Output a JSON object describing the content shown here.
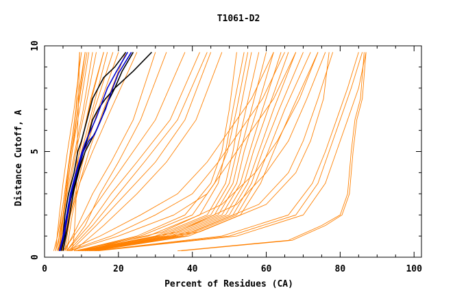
{
  "chart_data": {
    "type": "line",
    "title": "T1061-D2",
    "xlabel": "Percent of Residues (CA)",
    "ylabel": "Distance Cutoff, A",
    "xlim": [
      0,
      102
    ],
    "ylim": [
      0,
      10
    ],
    "xticks": [
      0,
      20,
      40,
      60,
      80,
      100
    ],
    "yticks": [
      0,
      5,
      10
    ],
    "grid": false,
    "colors": {
      "models": "#ff8000",
      "highlight_dark": "#000000",
      "highlight_blue": "#0000cc",
      "frame": "#000000"
    },
    "series": [
      {
        "group": "a",
        "color": "#ff8000",
        "x": [
          4.0,
          5.0,
          6.2,
          7.5,
          9.0,
          11.0
        ],
        "y": [
          0.3,
          2.0,
          3.5,
          5.0,
          7.0,
          9.7
        ]
      },
      {
        "group": "a",
        "color": "#ff8000",
        "x": [
          3.5,
          4.6,
          5.8,
          7.2,
          9.0,
          11.5
        ],
        "y": [
          0.3,
          2.0,
          3.5,
          5.0,
          7.0,
          9.7
        ]
      },
      {
        "group": "a",
        "color": "#ff8000",
        "x": [
          4.2,
          5.5,
          7.0,
          8.5,
          11.0,
          14.0
        ],
        "y": [
          0.3,
          2.0,
          3.5,
          5.0,
          7.0,
          9.7
        ]
      },
      {
        "group": "a",
        "color": "#ff8000",
        "x": [
          4.5,
          6.0,
          8.0,
          10.0,
          13.0,
          17.0
        ],
        "y": [
          0.3,
          2.0,
          3.5,
          5.0,
          7.0,
          9.7
        ]
      },
      {
        "group": "a",
        "color": "#ff8000",
        "x": [
          3.0,
          4.0,
          5.0,
          6.2,
          8.0,
          10.0
        ],
        "y": [
          0.3,
          2.0,
          3.5,
          5.0,
          7.0,
          9.7
        ]
      },
      {
        "group": "a",
        "color": "#ff8000",
        "x": [
          5.0,
          6.5,
          8.5,
          10.5,
          13.5,
          18.5
        ],
        "y": [
          0.3,
          2.0,
          3.5,
          5.0,
          7.0,
          9.7
        ]
      },
      {
        "group": "a",
        "color": "#ff8000",
        "x": [
          4.8,
          6.2,
          7.8,
          9.5,
          12.0,
          16.0
        ],
        "y": [
          0.3,
          2.0,
          3.5,
          5.0,
          7.0,
          9.7
        ]
      },
      {
        "group": "a",
        "color": "#ff8000",
        "x": [
          4.0,
          5.2,
          6.6,
          8.2,
          10.5,
          13.0
        ],
        "y": [
          0.3,
          2.0,
          3.5,
          5.0,
          7.0,
          9.7
        ]
      },
      {
        "group": "a",
        "color": "#ff8000",
        "x": [
          5.5,
          7.0,
          9.0,
          11.0,
          14.5,
          20.0
        ],
        "y": [
          0.3,
          2.0,
          3.5,
          5.0,
          7.0,
          9.7
        ]
      },
      {
        "group": "a",
        "color": "#ff8000",
        "x": [
          3.8,
          5.0,
          6.0,
          7.0,
          8.5,
          9.5
        ],
        "y": [
          0.3,
          2.0,
          3.5,
          5.0,
          7.0,
          9.7
        ]
      },
      {
        "group": "a",
        "color": "#ff8000",
        "x": [
          6.0,
          7.5,
          9.5,
          12.0,
          16.0,
          22.0
        ],
        "y": [
          0.3,
          2.0,
          3.5,
          5.0,
          7.0,
          9.7
        ]
      },
      {
        "group": "a",
        "color": "#ff8000",
        "x": [
          5.0,
          7.0,
          9.5,
          13.0,
          18.0,
          25.0
        ],
        "y": [
          0.3,
          2.0,
          3.5,
          5.0,
          7.0,
          9.7
        ]
      },
      {
        "group": "b",
        "color": "#ff8000",
        "x": [
          5.0,
          10.0,
          16.0,
          22.0,
          30.0,
          38.0
        ],
        "y": [
          0.3,
          1.5,
          3.0,
          4.5,
          6.5,
          9.7
        ]
      },
      {
        "group": "b",
        "color": "#ff8000",
        "x": [
          6.0,
          12.0,
          18.0,
          25.0,
          34.0,
          42.0
        ],
        "y": [
          0.3,
          1.5,
          3.0,
          4.5,
          6.5,
          9.7
        ]
      },
      {
        "group": "b",
        "color": "#ff8000",
        "x": [
          5.5,
          9.0,
          13.0,
          18.0,
          24.0,
          30.0
        ],
        "y": [
          0.3,
          1.5,
          3.0,
          4.5,
          6.5,
          9.7
        ]
      },
      {
        "group": "b",
        "color": "#ff8000",
        "x": [
          7.0,
          14.0,
          22.0,
          30.0,
          38.0,
          45.0
        ],
        "y": [
          0.3,
          1.5,
          3.0,
          4.5,
          6.5,
          9.7
        ]
      },
      {
        "group": "b",
        "color": "#ff8000",
        "x": [
          6.0,
          11.0,
          15.0,
          20.0,
          26.0,
          33.0
        ],
        "y": [
          0.3,
          1.5,
          3.0,
          4.5,
          6.5,
          9.7
        ]
      },
      {
        "group": "b",
        "color": "#ff8000",
        "x": [
          8.0,
          16.0,
          25.0,
          33.0,
          41.0,
          48.0
        ],
        "y": [
          0.3,
          1.5,
          3.0,
          4.5,
          6.5,
          9.7
        ]
      },
      {
        "group": "b",
        "color": "#ff8000",
        "x": [
          6.5,
          13.0,
          20.0,
          27.0,
          36.0,
          44.0
        ],
        "y": [
          0.3,
          1.5,
          3.0,
          4.5,
          6.5,
          9.7
        ]
      },
      {
        "group": "c",
        "color": "#ff8000",
        "x": [
          8.0,
          28.0,
          42.0,
          47.0,
          49.0,
          51.0,
          54.0
        ],
        "y": [
          0.3,
          1.0,
          2.0,
          3.5,
          5.0,
          7.0,
          9.7
        ]
      },
      {
        "group": "c",
        "color": "#ff8000",
        "x": [
          9.0,
          30.0,
          44.0,
          49.0,
          51.0,
          53.0,
          56.0
        ],
        "y": [
          0.3,
          1.0,
          2.0,
          3.5,
          5.0,
          7.0,
          9.7
        ]
      },
      {
        "group": "c",
        "color": "#ff8000",
        "x": [
          9.5,
          31.0,
          45.0,
          50.0,
          52.0,
          54.5,
          58.0
        ],
        "y": [
          0.3,
          1.0,
          2.0,
          3.5,
          5.0,
          7.0,
          9.7
        ]
      },
      {
        "group": "c",
        "color": "#ff8000",
        "x": [
          10.0,
          32.0,
          46.0,
          51.0,
          53.0,
          56.0,
          60.0
        ],
        "y": [
          0.3,
          1.0,
          2.0,
          3.5,
          5.0,
          7.0,
          9.7
        ]
      },
      {
        "group": "c",
        "color": "#ff8000",
        "x": [
          10.5,
          33.0,
          47.0,
          52.0,
          54.0,
          57.5,
          62.0
        ],
        "y": [
          0.3,
          1.0,
          2.0,
          3.5,
          5.0,
          7.0,
          9.7
        ]
      },
      {
        "group": "c",
        "color": "#ff8000",
        "x": [
          11.0,
          34.0,
          48.0,
          53.0,
          55.5,
          59.0,
          64.0
        ],
        "y": [
          0.3,
          1.0,
          2.0,
          3.5,
          5.0,
          7.0,
          9.7
        ]
      },
      {
        "group": "c",
        "color": "#ff8000",
        "x": [
          11.5,
          35.0,
          49.0,
          54.0,
          56.5,
          60.5,
          66.0
        ],
        "y": [
          0.3,
          1.0,
          2.0,
          3.5,
          5.0,
          7.0,
          9.7
        ]
      },
      {
        "group": "c",
        "color": "#ff8000",
        "x": [
          12.0,
          36.0,
          50.0,
          55.0,
          58.0,
          62.0,
          68.0
        ],
        "y": [
          0.3,
          1.0,
          2.0,
          3.5,
          5.0,
          7.0,
          9.7
        ]
      },
      {
        "group": "c",
        "color": "#ff8000",
        "x": [
          12.5,
          37.0,
          51.0,
          56.0,
          59.0,
          63.5,
          70.0
        ],
        "y": [
          0.3,
          1.0,
          2.0,
          3.5,
          5.0,
          7.0,
          9.7
        ]
      },
      {
        "group": "c",
        "color": "#ff8000",
        "x": [
          13.0,
          38.0,
          52.0,
          57.0,
          60.5,
          65.0,
          72.0
        ],
        "y": [
          0.3,
          1.0,
          2.0,
          3.5,
          5.0,
          7.0,
          9.7
        ]
      },
      {
        "group": "c",
        "color": "#ff8000",
        "x": [
          8.5,
          25.0,
          38.0,
          45.0,
          48.0,
          50.0,
          52.0
        ],
        "y": [
          0.3,
          1.0,
          2.0,
          3.5,
          5.0,
          7.0,
          9.7
        ]
      },
      {
        "group": "c",
        "color": "#ff8000",
        "x": [
          9.0,
          26.0,
          40.0,
          46.0,
          49.5,
          52.0,
          55.0
        ],
        "y": [
          0.3,
          1.0,
          2.0,
          3.5,
          5.0,
          7.0,
          9.7
        ]
      },
      {
        "group": "c",
        "color": "#ff8000",
        "x": [
          13.5,
          39.0,
          53.0,
          58.5,
          62.0,
          67.0,
          74.0
        ],
        "y": [
          0.3,
          1.0,
          2.0,
          3.5,
          5.0,
          7.0,
          9.7
        ]
      },
      {
        "group": "d",
        "color": "#ff8000",
        "x": [
          12.0,
          40.0,
          58.0,
          66.0,
          70.0,
          74.0,
          78.0
        ],
        "y": [
          0.3,
          1.2,
          2.5,
          4.0,
          5.5,
          7.5,
          9.7
        ]
      },
      {
        "group": "d",
        "color": "#ff8000",
        "x": [
          12.5,
          42.0,
          60.0,
          68.0,
          72.0,
          75.5,
          77.0
        ],
        "y": [
          0.3,
          1.2,
          2.5,
          4.0,
          5.5,
          7.5,
          9.7
        ]
      },
      {
        "group": "d",
        "color": "#ff8000",
        "x": [
          11.0,
          36.0,
          52.0,
          60.0,
          66.0,
          71.0,
          76.0
        ],
        "y": [
          0.3,
          1.2,
          2.5,
          4.0,
          5.5,
          7.5,
          9.7
        ]
      },
      {
        "group": "d",
        "color": "#ff8000",
        "x": [
          10.0,
          32.0,
          48.0,
          57.0,
          63.0,
          69.0,
          74.0
        ],
        "y": [
          0.3,
          1.2,
          2.5,
          4.0,
          5.5,
          7.5,
          9.7
        ]
      },
      {
        "group": "e",
        "color": "#ff8000",
        "x": [
          14.0,
          50.0,
          68.0,
          74.0,
          77.0,
          80.0,
          83.0,
          86.0
        ],
        "y": [
          0.3,
          1.0,
          2.0,
          3.5,
          5.0,
          6.5,
          8.0,
          9.7
        ]
      },
      {
        "group": "e",
        "color": "#ff8000",
        "x": [
          14.5,
          52.0,
          70.0,
          76.0,
          79.0,
          82.0,
          85.0,
          87.0
        ],
        "y": [
          0.3,
          1.0,
          2.0,
          3.5,
          5.0,
          6.5,
          8.0,
          9.7
        ]
      },
      {
        "group": "e",
        "color": "#ff8000",
        "x": [
          13.5,
          48.0,
          66.0,
          72.5,
          76.0,
          79.0,
          82.0,
          85.0
        ],
        "y": [
          0.3,
          1.0,
          2.0,
          3.5,
          5.0,
          6.5,
          8.0,
          9.7
        ]
      },
      {
        "group": "f",
        "color": "#ff8000",
        "x": [
          36.0,
          66.0,
          75.0,
          80.0,
          82.0,
          83.0,
          84.0,
          85.5,
          86.5
        ],
        "y": [
          0.3,
          0.8,
          1.5,
          2.0,
          3.0,
          5.0,
          6.5,
          7.5,
          9.7
        ]
      },
      {
        "group": "f",
        "color": "#ff8000",
        "x": [
          37.0,
          67.0,
          76.0,
          80.5,
          82.5,
          83.5,
          84.5,
          86.0,
          87.0
        ],
        "y": [
          0.3,
          0.8,
          1.5,
          2.0,
          3.0,
          5.0,
          6.5,
          7.5,
          9.7
        ]
      },
      {
        "group": "g",
        "color": "#ff8000",
        "x": [
          2.5,
          3.5,
          5.0,
          7.0,
          9.0,
          11.0
        ],
        "y": [
          0.3,
          1.0,
          2.5,
          5.0,
          7.5,
          9.7
        ]
      },
      {
        "group": "g",
        "color": "#ff8000",
        "x": [
          3.0,
          4.0,
          5.5,
          7.5,
          10.0,
          12.0
        ],
        "y": [
          0.3,
          1.0,
          2.5,
          5.0,
          7.5,
          9.7
        ]
      },
      {
        "group": "g",
        "color": "#ff8000",
        "x": [
          3.5,
          5.0,
          7.0,
          9.5,
          12.5,
          16.0
        ],
        "y": [
          0.3,
          1.0,
          2.5,
          5.0,
          7.5,
          9.7
        ]
      },
      {
        "group": "g",
        "color": "#ff8000",
        "x": [
          7.5,
          8.0,
          8.5,
          8.8,
          9.2,
          9.5
        ],
        "y": [
          0.3,
          1.0,
          2.5,
          5.0,
          7.5,
          9.7
        ]
      },
      {
        "group": "h",
        "color": "#ff8000",
        "x": [
          7.0,
          20.0,
          35.0,
          44.0,
          50.0,
          56.0,
          62.0,
          68.0
        ],
        "y": [
          0.3,
          1.0,
          2.0,
          3.0,
          4.5,
          6.0,
          7.5,
          9.7
        ]
      },
      {
        "group": "h",
        "color": "#ff8000",
        "x": [
          6.5,
          18.0,
          30.0,
          40.0,
          47.0,
          53.0,
          59.0,
          65.0
        ],
        "y": [
          0.3,
          1.0,
          2.0,
          3.0,
          4.5,
          6.0,
          7.5,
          9.7
        ]
      },
      {
        "group": "h",
        "color": "#ff8000",
        "x": [
          6.0,
          15.0,
          26.0,
          36.0,
          44.0,
          50.0,
          56.0,
          62.0
        ],
        "y": [
          0.3,
          1.0,
          2.0,
          3.0,
          4.5,
          6.0,
          7.5,
          9.7
        ]
      },
      {
        "group": "k",
        "color": "#000000",
        "x": [
          4.0,
          5.0,
          5.5,
          6.5,
          8.0,
          9.0,
          10.0,
          11.5,
          13.0,
          14.5,
          16.0,
          19.0,
          22.0
        ],
        "y": [
          0.3,
          1.0,
          2.0,
          3.0,
          4.0,
          5.0,
          5.5,
          6.5,
          7.5,
          8.0,
          8.5,
          9.0,
          9.7
        ]
      },
      {
        "group": "k",
        "color": "#000000",
        "x": [
          4.5,
          5.5,
          6.0,
          7.5,
          9.0,
          10.5,
          11.5,
          13.0,
          14.5,
          16.5,
          19.0,
          24.0,
          29.0
        ],
        "y": [
          0.3,
          1.0,
          2.0,
          3.0,
          4.0,
          5.0,
          5.5,
          6.5,
          7.0,
          7.5,
          8.0,
          8.8,
          9.7
        ]
      },
      {
        "group": "k",
        "color": "#000000",
        "x": [
          5.0,
          6.0,
          7.0,
          8.0,
          9.5,
          11.0,
          12.5,
          14.0,
          15.5,
          17.0,
          19.0,
          21.0,
          24.0
        ],
        "y": [
          0.3,
          1.2,
          2.2,
          3.2,
          4.2,
          5.0,
          5.5,
          6.0,
          6.6,
          7.3,
          8.0,
          8.8,
          9.7
        ]
      },
      {
        "group": "bl",
        "color": "#0000cc",
        "x": [
          4.2,
          5.5,
          6.5,
          7.5,
          9.0,
          10.5,
          12.0,
          13.5,
          14.5,
          16.5,
          18.0,
          20.0,
          23.5
        ],
        "y": [
          0.3,
          1.2,
          2.2,
          3.2,
          4.2,
          5.0,
          5.5,
          5.8,
          6.2,
          7.0,
          7.8,
          8.7,
          9.7
        ]
      },
      {
        "group": "bl",
        "color": "#0000cc",
        "x": [
          4.0,
          5.0,
          6.0,
          7.0,
          8.5,
          10.0,
          11.0,
          12.5,
          14.0,
          15.5,
          17.0,
          19.5,
          22.5
        ],
        "y": [
          0.3,
          1.0,
          2.0,
          3.0,
          4.0,
          4.9,
          5.4,
          6.0,
          6.6,
          7.3,
          8.0,
          8.8,
          9.7
        ]
      }
    ]
  }
}
